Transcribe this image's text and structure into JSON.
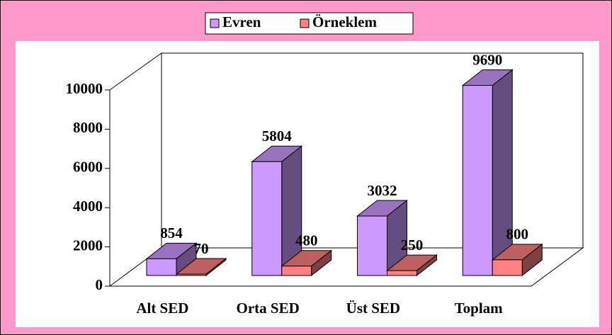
{
  "chart_data": {
    "type": "bar",
    "categories": [
      "Alt SED",
      "Orta SED",
      "Üst SED",
      "Toplam"
    ],
    "series": [
      {
        "name": "Evren",
        "color": "#CC99FF",
        "values": [
          854,
          5804,
          3032,
          9690
        ]
      },
      {
        "name": "Örneklem",
        "color": "#FF8080",
        "values": [
          70,
          480,
          250,
          800
        ]
      }
    ],
    "ylim": [
      0,
      10000
    ],
    "yticks": [
      0,
      2000,
      4000,
      6000,
      8000,
      10000
    ],
    "legend": "top"
  }
}
